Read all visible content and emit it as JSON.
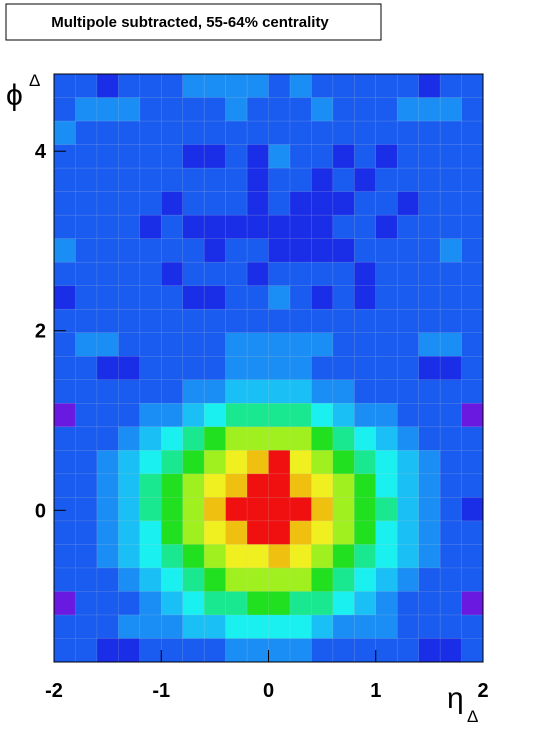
{
  "chart_data": {
    "type": "heatmap",
    "title": "Multipole subtracted, 55-64% centrality",
    "xlabel": "η",
    "xlabel_sub": "Δ",
    "ylabel": "ϕ",
    "ylabel_sub": "Δ",
    "xlim": [
      -2,
      2
    ],
    "ylim": [
      -1.69,
      4.86
    ],
    "xticks": [
      -2,
      -1,
      0,
      1,
      2
    ],
    "yticks": [
      0,
      2,
      4
    ],
    "colors": [
      "#6a1ae0",
      "#1a2ee8",
      "#1a5cf0",
      "#1a8ef5",
      "#1ac0f5",
      "#1af0f0",
      "#1ae890",
      "#20e020",
      "#a0f020",
      "#f0f020",
      "#f0c010",
      "#f08010",
      "#f01010"
    ],
    "grid": true,
    "z": [
      [
        2,
        2,
        1,
        2,
        2,
        2,
        3,
        3,
        3,
        3,
        2,
        3,
        2,
        2,
        2,
        2,
        2,
        1,
        2,
        2
      ],
      [
        2,
        3,
        3,
        3,
        2,
        2,
        2,
        2,
        3,
        2,
        2,
        2,
        3,
        2,
        2,
        2,
        3,
        3,
        3,
        2
      ],
      [
        3,
        2,
        2,
        2,
        2,
        2,
        2,
        2,
        2,
        2,
        2,
        2,
        2,
        2,
        2,
        2,
        2,
        2,
        2,
        2
      ],
      [
        2,
        2,
        2,
        2,
        2,
        2,
        1,
        1,
        2,
        1,
        3,
        2,
        2,
        1,
        2,
        1,
        2,
        2,
        2,
        2
      ],
      [
        2,
        2,
        2,
        2,
        2,
        2,
        2,
        2,
        2,
        1,
        2,
        2,
        1,
        2,
        1,
        2,
        2,
        2,
        2,
        2
      ],
      [
        2,
        2,
        2,
        2,
        2,
        1,
        2,
        2,
        2,
        1,
        2,
        1,
        1,
        1,
        2,
        2,
        1,
        2,
        2,
        2
      ],
      [
        2,
        2,
        2,
        2,
        1,
        2,
        1,
        1,
        1,
        1,
        1,
        1,
        1,
        2,
        2,
        1,
        2,
        2,
        2,
        2
      ],
      [
        3,
        2,
        2,
        2,
        2,
        2,
        2,
        1,
        2,
        2,
        1,
        1,
        1,
        1,
        2,
        2,
        2,
        2,
        3,
        2
      ],
      [
        2,
        2,
        2,
        2,
        2,
        1,
        2,
        2,
        2,
        1,
        2,
        2,
        2,
        2,
        1,
        2,
        2,
        2,
        2,
        2
      ],
      [
        1,
        2,
        2,
        2,
        2,
        2,
        1,
        1,
        2,
        2,
        3,
        2,
        1,
        2,
        1,
        2,
        2,
        2,
        2,
        2
      ],
      [
        2,
        2,
        2,
        2,
        2,
        2,
        2,
        2,
        2,
        2,
        2,
        2,
        2,
        2,
        2,
        2,
        2,
        2,
        2,
        2
      ],
      [
        2,
        3,
        3,
        2,
        2,
        2,
        2,
        2,
        3,
        3,
        3,
        3,
        3,
        2,
        2,
        2,
        2,
        3,
        3,
        2
      ],
      [
        2,
        2,
        1,
        1,
        2,
        2,
        2,
        2,
        3,
        3,
        3,
        3,
        2,
        2,
        2,
        2,
        2,
        1,
        1,
        2
      ],
      [
        2,
        2,
        2,
        2,
        2,
        2,
        3,
        3,
        4,
        4,
        4,
        4,
        3,
        3,
        2,
        2,
        2,
        2,
        2,
        2
      ],
      [
        0,
        2,
        2,
        2,
        3,
        3,
        4,
        5,
        6,
        6,
        6,
        6,
        5,
        4,
        3,
        3,
        2,
        2,
        2,
        0
      ],
      [
        2,
        2,
        2,
        3,
        4,
        5,
        6,
        7,
        8,
        8,
        8,
        8,
        7,
        6,
        5,
        4,
        3,
        2,
        2,
        2
      ],
      [
        2,
        2,
        3,
        4,
        5,
        6,
        7,
        8,
        9,
        10,
        12,
        9,
        8,
        7,
        6,
        5,
        4,
        3,
        2,
        2
      ],
      [
        2,
        2,
        3,
        4,
        6,
        7,
        8,
        9,
        10,
        12,
        12,
        10,
        9,
        8,
        7,
        5,
        4,
        3,
        2,
        2
      ],
      [
        2,
        2,
        3,
        4,
        6,
        7,
        8,
        10,
        12,
        12,
        12,
        12,
        10,
        8,
        7,
        6,
        4,
        3,
        2,
        1
      ],
      [
        2,
        2,
        3,
        4,
        5,
        7,
        8,
        9,
        10,
        12,
        12,
        10,
        9,
        8,
        7,
        5,
        4,
        3,
        2,
        2
      ],
      [
        2,
        2,
        3,
        4,
        5,
        6,
        7,
        8,
        9,
        9,
        10,
        9,
        8,
        7,
        6,
        5,
        4,
        3,
        2,
        2
      ],
      [
        2,
        2,
        2,
        3,
        4,
        5,
        6,
        7,
        8,
        8,
        8,
        8,
        7,
        6,
        5,
        4,
        3,
        2,
        2,
        2
      ],
      [
        0,
        2,
        2,
        2,
        3,
        4,
        5,
        6,
        6,
        7,
        7,
        6,
        6,
        5,
        4,
        3,
        2,
        2,
        2,
        0
      ],
      [
        2,
        2,
        2,
        3,
        3,
        3,
        4,
        4,
        5,
        5,
        5,
        5,
        4,
        3,
        3,
        3,
        2,
        2,
        2,
        2
      ],
      [
        2,
        2,
        1,
        1,
        2,
        2,
        2,
        2,
        3,
        3,
        3,
        3,
        2,
        2,
        2,
        2,
        2,
        1,
        1,
        2
      ]
    ]
  }
}
